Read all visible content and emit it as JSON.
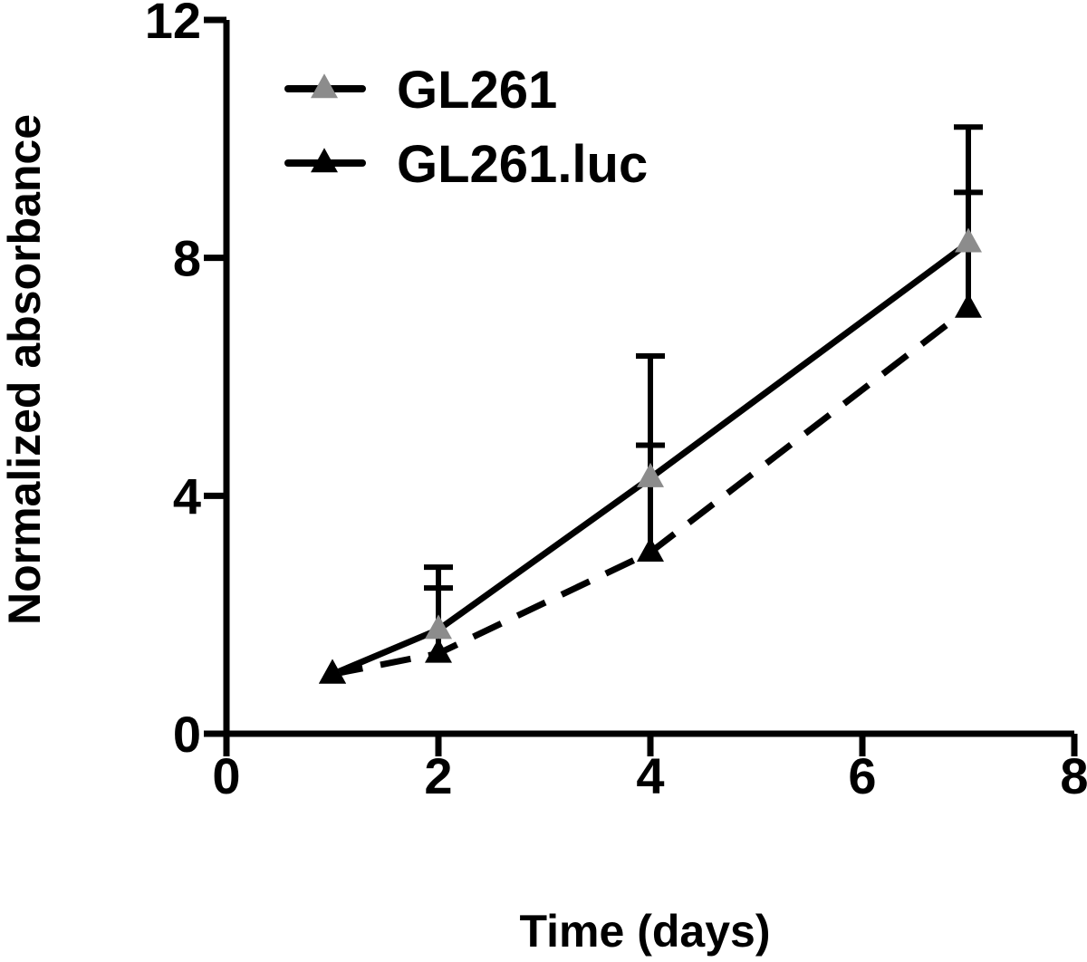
{
  "chart_data": {
    "type": "line",
    "xlabel": "Time (days)",
    "ylabel": "Normalized absorbance",
    "xlim": [
      0,
      8
    ],
    "ylim": [
      0,
      12
    ],
    "xticks": [
      0,
      2,
      4,
      6,
      8
    ],
    "yticks": [
      0,
      4,
      8,
      12
    ],
    "xtick_labels": [
      "0",
      "2",
      "4",
      "6",
      "8"
    ],
    "ytick_labels": [
      "0",
      "4",
      "8",
      "12"
    ],
    "grid": false,
    "legend_position": "top-left",
    "series": [
      {
        "name": "GL261",
        "line_style": "solid",
        "marker": "triangle",
        "marker_color": "#8c8c8c",
        "x": [
          1,
          2,
          4,
          7
        ],
        "y": [
          1.0,
          1.75,
          4.3,
          8.25
        ],
        "error_upper": [
          0,
          1.05,
          2.05,
          1.95
        ]
      },
      {
        "name": "GL261.luc",
        "line_style": "dashed",
        "marker": "triangle",
        "marker_color": "#000000",
        "x": [
          1,
          2,
          4,
          7
        ],
        "y": [
          1.0,
          1.35,
          3.05,
          7.15
        ],
        "error_upper": [
          0,
          1.1,
          1.8,
          1.95
        ]
      }
    ]
  }
}
